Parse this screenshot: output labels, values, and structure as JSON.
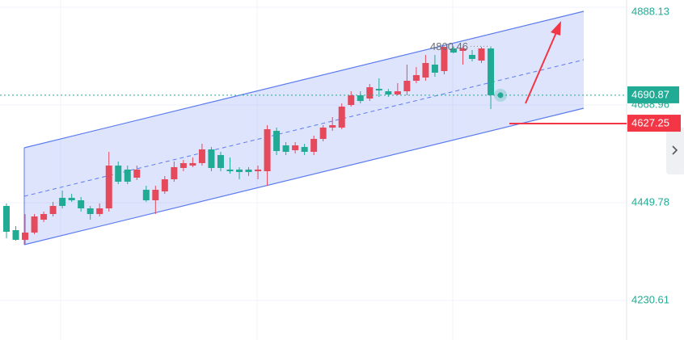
{
  "chart_data": {
    "type": "candlestick",
    "open": [
      4442.5,
      4388.2,
      4366.5,
      4382.8,
      4411.7,
      4424.4,
      4460.7,
      4460.7,
      4455.2,
      4437.1,
      4424.4,
      4437.1,
      4533.1,
      4524.1,
      4505.9,
      4478.8,
      4455.2,
      4475.2,
      4502.3,
      4527.7,
      4533.1,
      4538.6,
      4569.4,
      4556.7,
      4524.1,
      4524.1,
      4524.1,
      4520.4,
      4520.4,
      4611.0,
      4578.4,
      4567.5,
      4574.8,
      4563.9,
      4592.9,
      4618.3,
      4618.3,
      4669.0,
      4690.7,
      4683.5,
      4705.2,
      4699.8,
      4692.5,
      4699.8,
      4723.3,
      4730.6,
      4759.6,
      4745.1,
      4795.8,
      4790.4,
      4781.3,
      4768.6,
      4795.8
    ],
    "high": [
      4448.0,
      4397.3,
      4424.4,
      4424.4,
      4429.9,
      4451.6,
      4477.0,
      4469.7,
      4462.5,
      4442.5,
      4448.0,
      4563.9,
      4542.2,
      4533.1,
      4533.1,
      4487.8,
      4487.8,
      4509.6,
      4542.2,
      4545.8,
      4551.2,
      4582.0,
      4574.8,
      4563.9,
      4551.2,
      4529.5,
      4529.5,
      4533.1,
      4623.7,
      4618.3,
      4585.7,
      4585.7,
      4582.0,
      4600.2,
      4623.7,
      4641.8,
      4672.6,
      4699.8,
      4699.8,
      4716.1,
      4728.8,
      4705.2,
      4717.9,
      4759.6,
      4754.1,
      4781.3,
      4781.3,
      4800.0,
      4799.9,
      4799.6,
      4792.2,
      4799.2,
      4800.46
    ],
    "low": [
      4370.1,
      4364.6,
      4355.6,
      4379.1,
      4406.3,
      4419.0,
      4437.1,
      4451.6,
      4429.9,
      4411.7,
      4419.0,
      4429.9,
      4491.5,
      4491.5,
      4500.5,
      4451.6,
      4424.4,
      4469.7,
      4496.9,
      4520.4,
      4529.5,
      4533.1,
      4520.4,
      4520.4,
      4515.0,
      4502.3,
      4509.6,
      4502.3,
      4487.8,
      4556.7,
      4556.7,
      4560.3,
      4556.7,
      4556.7,
      4587.5,
      4611.0,
      4614.6,
      4665.4,
      4672.6,
      4678.0,
      4687.1,
      4687.1,
      4690.7,
      4690.7,
      4717.9,
      4723.3,
      4732.4,
      4737.8,
      4784.9,
      4759.6,
      4766.8,
      4763.2,
      4659.9
    ],
    "close": [
      4384.6,
      4366.5,
      4382.8,
      4419.0,
      4424.4,
      4442.5,
      4442.5,
      4455.2,
      4437.1,
      4424.4,
      4437.1,
      4533.1,
      4496.9,
      4496.9,
      4524.1,
      4455.2,
      4478.8,
      4502.3,
      4529.5,
      4538.6,
      4538.6,
      4569.4,
      4527.7,
      4527.7,
      4520.4,
      4518.6,
      4518.6,
      4524.1,
      4614.6,
      4565.7,
      4563.9,
      4578.4,
      4563.9,
      4592.9,
      4618.3,
      4623.7,
      4665.4,
      4690.7,
      4678.0,
      4708.8,
      4701.6,
      4692.5,
      4699.8,
      4723.3,
      4736.0,
      4763.2,
      4741.5,
      4799.4,
      4786.7,
      4795.8,
      4772.3,
      4795.8,
      4690.87
    ],
    "up_color": "#e5495c",
    "down_color": "#22ab94",
    "ylim": [
      4141.8,
      4904.5
    ],
    "yticks": [
      4230.61,
      4449.78,
      4668.96,
      4888.13
    ],
    "grid": true,
    "last_price": 4690.87,
    "price_line": 4627.25,
    "high_annotation": 4800.46
  }
}
